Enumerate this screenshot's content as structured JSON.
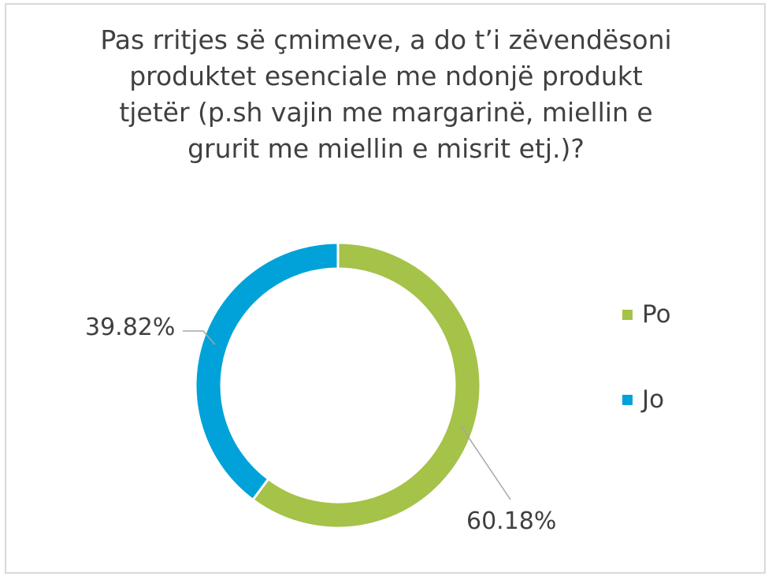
{
  "chart_data": {
    "type": "pie",
    "variant": "donut",
    "title_lines": [
      "Pas rritjes së çmimeve, a do t’i zëvendësoni",
      "produktet esenciale me ndonjë produkt",
      "tjetër (p.sh  vajin me margarinë, miellin e",
      "grurit me miellin e misrit etj.)?"
    ],
    "categories": [
      "Po",
      "Jo"
    ],
    "values": [
      60.18,
      39.82
    ],
    "data_labels": [
      "60.18%",
      "39.82%"
    ],
    "colors": [
      "#a5c249",
      "#00a2d9"
    ],
    "legend_position": "right"
  }
}
